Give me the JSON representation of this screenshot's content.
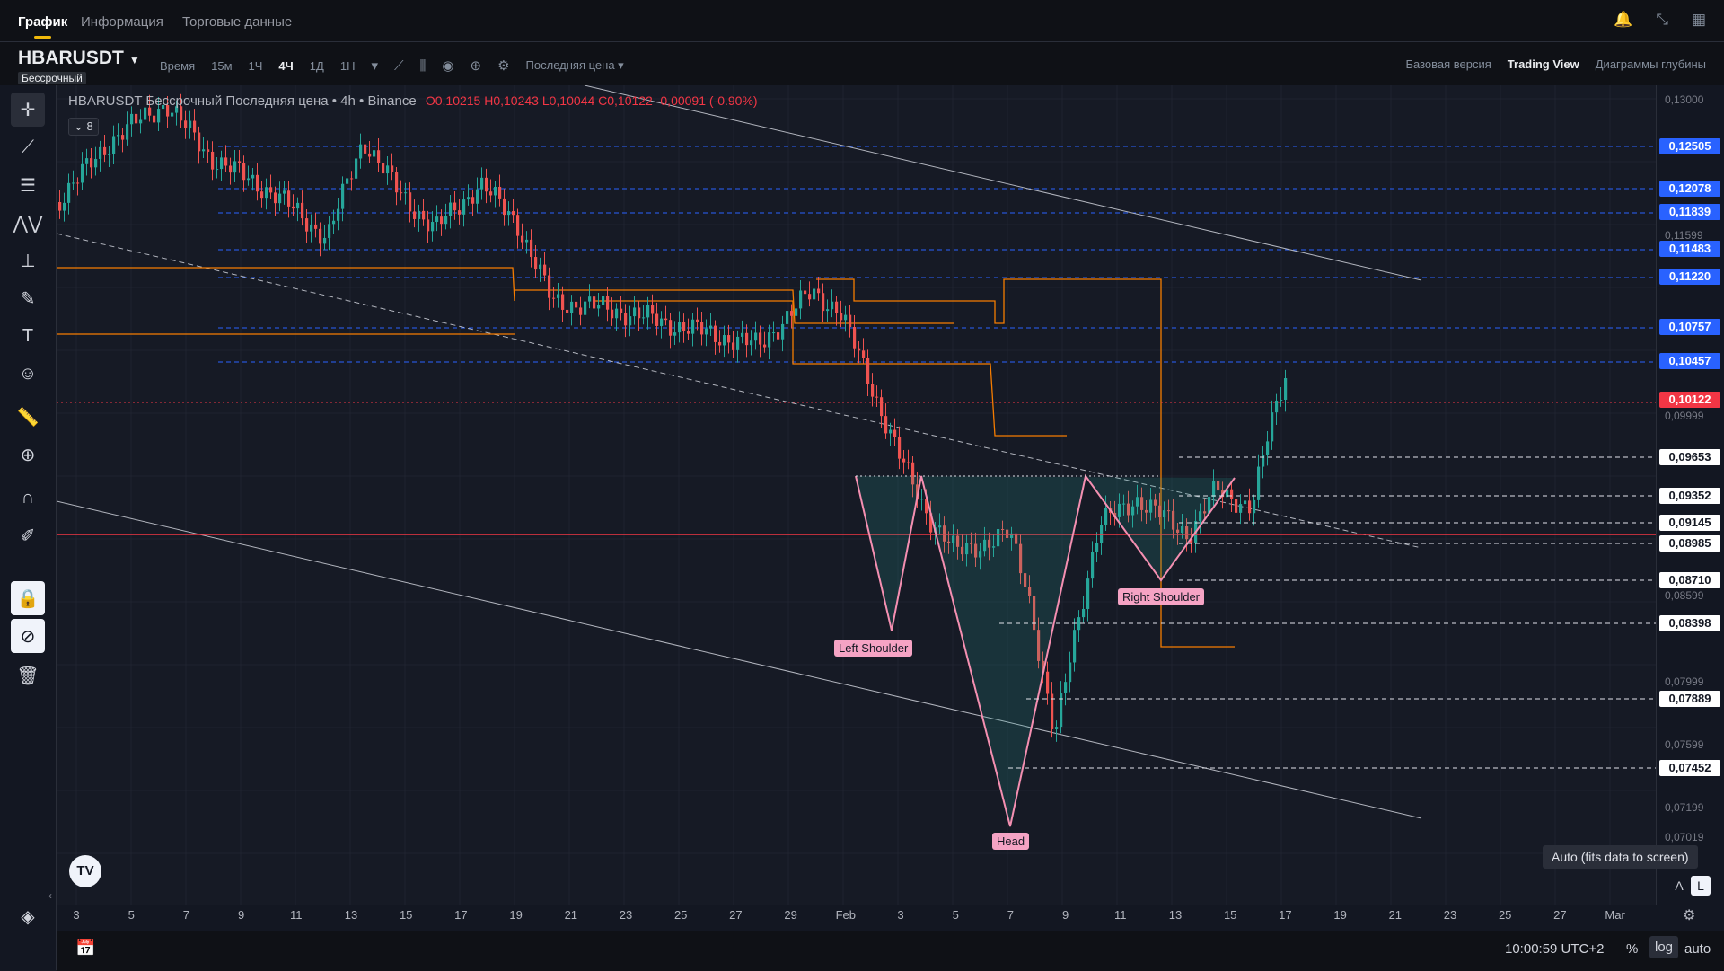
{
  "top_tabs": {
    "chart": "График",
    "info": "Информация",
    "trading_data": "Торговые данные"
  },
  "top_icons": [
    "bell-icon",
    "collapse-icon",
    "grid-layout-icon"
  ],
  "symbol": {
    "name": "HBARUSDT",
    "type": "Бессрочный"
  },
  "intervals": {
    "time": "Время",
    "m15": "15м",
    "h1": "1Ч",
    "h4": "4Ч",
    "d1": "1Д",
    "w1": "1Н",
    "active": "4Ч"
  },
  "price_type": "Последняя цена",
  "views": {
    "basic": "Базовая версия",
    "tradingview": "Trading View",
    "depth": "Диаграммы глубины"
  },
  "legend": {
    "title": "HBARUSDT Бессрочный Последняя цена • 4h • Binance",
    "ohlc": "O0,10215 H0,10243 L0,10044 C0,10122 -0,00091 (-0.90%)"
  },
  "indicator_count": "8",
  "price_ticks": [
    "0,13000",
    "0,11599",
    "0,09999",
    "0,08599",
    "0,07999",
    "0,07599",
    "0,07199",
    "0,07019"
  ],
  "price_labels": [
    {
      "value": "0,12505",
      "style": "blue"
    },
    {
      "value": "0,12078",
      "style": "blue"
    },
    {
      "value": "0,11839",
      "style": "blue"
    },
    {
      "value": "0,11483",
      "style": "blue"
    },
    {
      "value": "0,11220",
      "style": "blue"
    },
    {
      "value": "0,10757",
      "style": "blue"
    },
    {
      "value": "0,10457",
      "style": "blue"
    },
    {
      "value": "0,10122",
      "style": "red"
    },
    {
      "value": "0,09653",
      "style": "white"
    },
    {
      "value": "0,09352",
      "style": "white"
    },
    {
      "value": "0,09145",
      "style": "white"
    },
    {
      "value": "0,08985",
      "style": "white"
    },
    {
      "value": "0,08710",
      "style": "white"
    },
    {
      "value": "0,08398",
      "style": "white"
    },
    {
      "value": "0,07889",
      "style": "white"
    },
    {
      "value": "0,07452",
      "style": "white"
    }
  ],
  "dates": [
    "3",
    "5",
    "7",
    "9",
    "11",
    "13",
    "15",
    "17",
    "19",
    "21",
    "23",
    "25",
    "27",
    "29",
    "Feb",
    "3",
    "5",
    "7",
    "9",
    "11",
    "13",
    "15",
    "17",
    "19",
    "21",
    "23",
    "25",
    "27",
    "Mar"
  ],
  "pattern": {
    "left_shoulder": "Left Shoulder",
    "head": "Head",
    "right_shoulder": "Right Shoulder"
  },
  "tooltip": "Auto (fits data to screen)",
  "scale_buttons": {
    "a": "A",
    "l": "L"
  },
  "bottom": {
    "clock": "10:00:59 UTC+2",
    "percent": "%",
    "log": "log",
    "auto": "auto"
  },
  "logo_text": "TV",
  "colors": {
    "up": "#26a69a",
    "down": "#ef5350",
    "accent": "#f0b90b",
    "fib_blue": "#2962ff",
    "orange": "#f57c00",
    "pattern": "#f48fb1",
    "red_line": "#f23645"
  },
  "left_tools": [
    "crosshair-icon",
    "trend-line-icon",
    "horizontal-lines-icon",
    "pattern-icon",
    "measure-icon",
    "brush-icon",
    "text-icon",
    "emoji-icon",
    "ruler-icon",
    "zoom-in-icon",
    "magnet-icon",
    "pencil-lock-icon",
    "lock-icon",
    "hide-drawings-icon",
    "trash-icon",
    "layers-icon"
  ]
}
